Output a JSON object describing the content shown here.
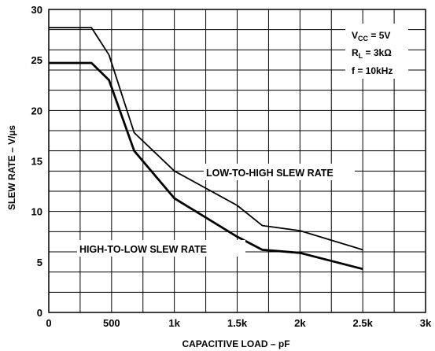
{
  "chart_data": {
    "type": "line",
    "title": "",
    "xlabel": "CAPACITIVE LOAD – pF",
    "ylabel": "SLEW RATE – V/µs",
    "xlim": [
      0,
      3000
    ],
    "ylim": [
      0,
      30
    ],
    "grid": true,
    "x_ticks": [
      {
        "value": 0,
        "label": "0"
      },
      {
        "value": 500,
        "label": "500"
      },
      {
        "value": 1000,
        "label": "1k"
      },
      {
        "value": 1500,
        "label": "1.5k"
      },
      {
        "value": 2000,
        "label": "2k"
      },
      {
        "value": 2500,
        "label": "2.5k"
      },
      {
        "value": 3000,
        "label": "3k"
      }
    ],
    "y_ticks": [
      {
        "value": 0,
        "label": "0"
      },
      {
        "value": 5,
        "label": "5"
      },
      {
        "value": 10,
        "label": "10"
      },
      {
        "value": 15,
        "label": "15"
      },
      {
        "value": 20,
        "label": "20"
      },
      {
        "value": 25,
        "label": "25"
      },
      {
        "value": 30,
        "label": "30"
      }
    ],
    "series": [
      {
        "name": "LOW-TO-HIGH SLEW RATE",
        "x": [
          0,
          340,
          480,
          680,
          1000,
          1500,
          1700,
          2000,
          2500
        ],
        "y": [
          28.2,
          28.2,
          25.5,
          17.8,
          14.0,
          10.6,
          8.6,
          8.1,
          6.2
        ]
      },
      {
        "name": "HIGH-TO-LOW SLEW RATE",
        "x": [
          0,
          340,
          480,
          680,
          1000,
          1500,
          1700,
          2000,
          2500
        ],
        "y": [
          24.7,
          24.7,
          23.0,
          16.0,
          11.3,
          7.5,
          6.2,
          5.9,
          4.3
        ]
      }
    ],
    "conditions": {
      "vcc_label": "V",
      "vcc_sub": "CC",
      "vcc_value": " = 5V",
      "rl_label": "R",
      "rl_sub": "L",
      "rl_value": " = 3kΩ",
      "freq": "f = 10kHz"
    }
  }
}
